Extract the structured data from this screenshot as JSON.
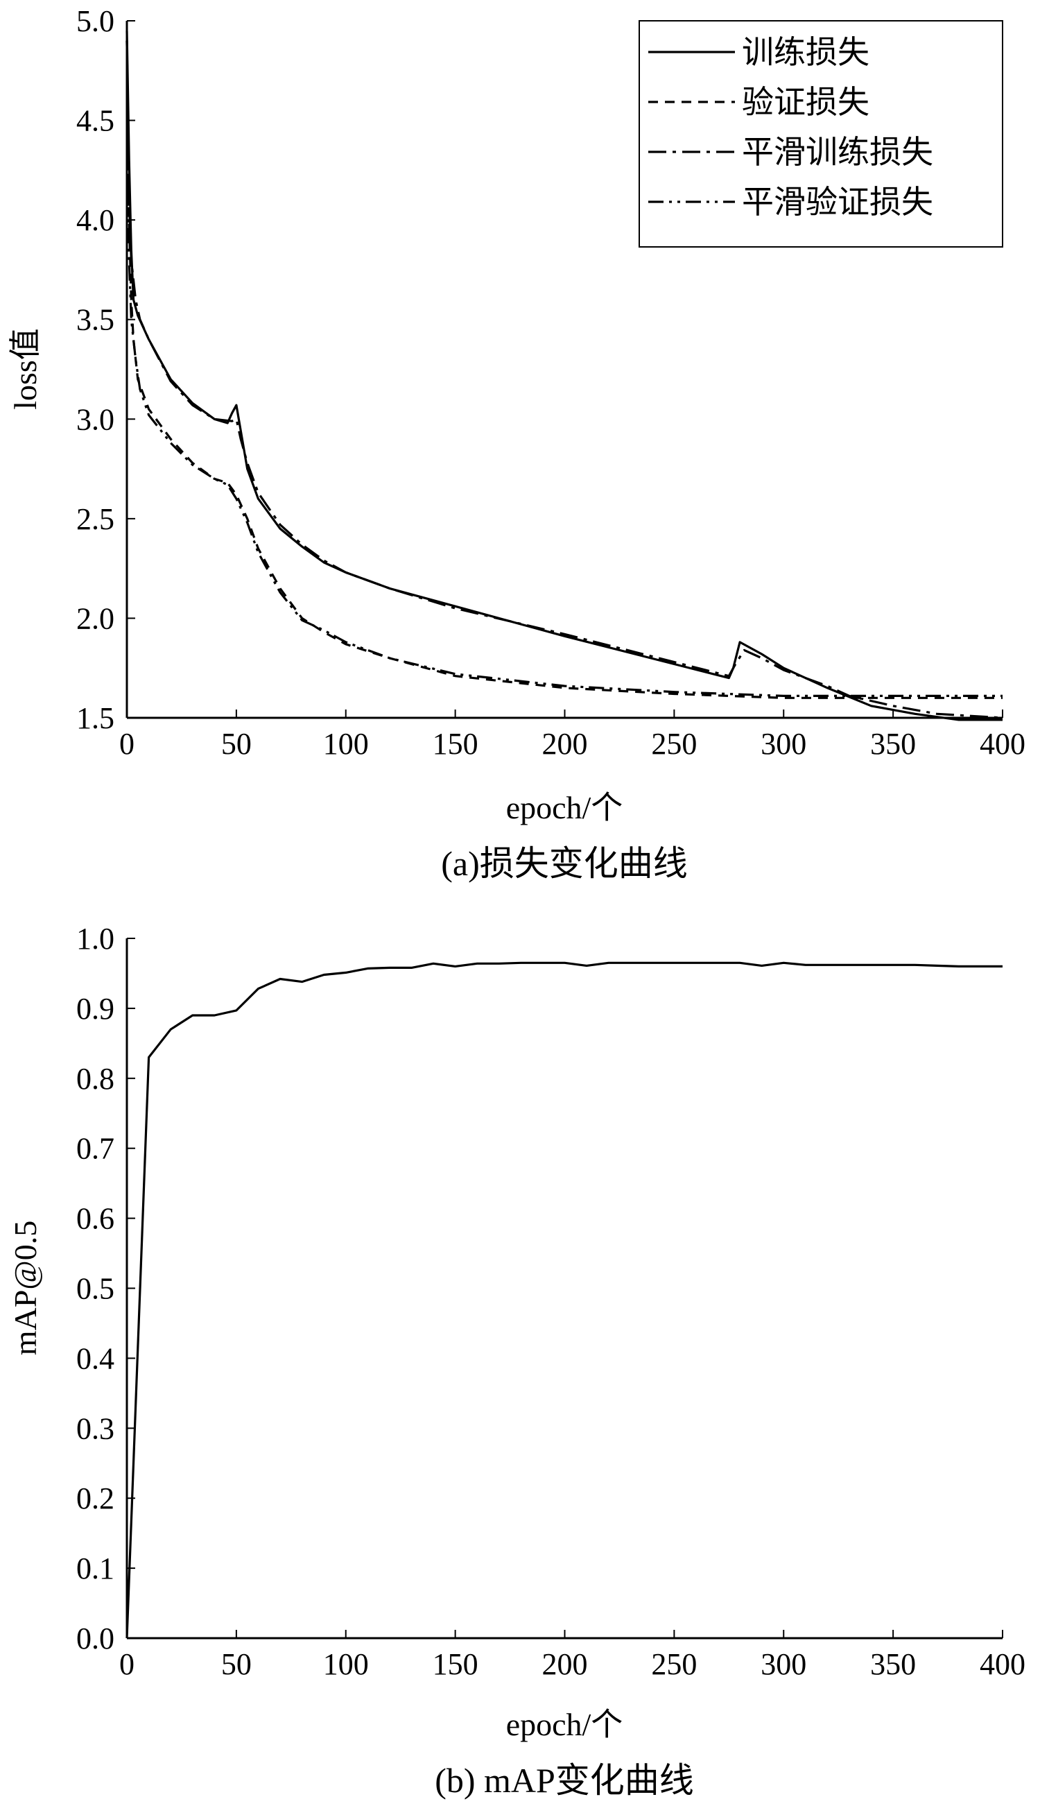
{
  "chart_data": [
    {
      "type": "line",
      "caption": "(a)损失变化曲线",
      "xlabel": "epoch/个",
      "ylabel": "loss值",
      "xlim": [
        0,
        400
      ],
      "ylim": [
        1.5,
        5.0
      ],
      "xticks": [
        "0",
        "50",
        "100",
        "150",
        "200",
        "250",
        "300",
        "350",
        "400"
      ],
      "yticks": [
        "1.5",
        "2.0",
        "2.5",
        "3.0",
        "3.5",
        "4.0",
        "4.5",
        "5.0"
      ],
      "grid": false,
      "legend_position": "top-right",
      "series": [
        {
          "name": "训练损失",
          "style": "solid",
          "x": [
            0,
            1,
            2,
            3,
            5,
            10,
            20,
            30,
            40,
            46,
            48,
            50,
            55,
            60,
            70,
            80,
            90,
            100,
            120,
            150,
            200,
            250,
            275,
            277,
            280,
            290,
            300,
            320,
            340,
            360,
            380,
            400
          ],
          "y": [
            4.95,
            4.3,
            3.85,
            3.6,
            3.52,
            3.4,
            3.2,
            3.08,
            3.0,
            2.98,
            3.03,
            3.07,
            2.75,
            2.6,
            2.45,
            2.36,
            2.28,
            2.23,
            2.15,
            2.06,
            1.91,
            1.77,
            1.7,
            1.75,
            1.88,
            1.82,
            1.75,
            1.65,
            1.56,
            1.52,
            1.49,
            1.49
          ]
        },
        {
          "name": "验证损失",
          "style": "dashed",
          "x": [
            0,
            1,
            2,
            3,
            5,
            10,
            20,
            30,
            40,
            46,
            50,
            55,
            60,
            70,
            80,
            90,
            100,
            120,
            150,
            200,
            250,
            300,
            350,
            400
          ],
          "y": [
            4.9,
            4.0,
            3.6,
            3.4,
            3.2,
            3.05,
            2.9,
            2.78,
            2.7,
            2.68,
            2.62,
            2.5,
            2.35,
            2.15,
            2.0,
            1.93,
            1.87,
            1.8,
            1.71,
            1.65,
            1.62,
            1.6,
            1.6,
            1.6
          ]
        },
        {
          "name": "平滑训练损失",
          "style": "dashdot",
          "x": [
            0,
            1,
            2,
            4,
            6,
            10,
            20,
            30,
            40,
            48,
            50,
            52,
            55,
            60,
            70,
            80,
            90,
            100,
            120,
            150,
            200,
            250,
            275,
            278,
            282,
            290,
            300,
            320,
            330,
            350,
            370,
            400
          ],
          "y": [
            4.9,
            4.1,
            3.8,
            3.6,
            3.5,
            3.4,
            3.19,
            3.07,
            3.0,
            2.99,
            3.0,
            2.9,
            2.78,
            2.63,
            2.47,
            2.37,
            2.29,
            2.23,
            2.15,
            2.05,
            1.92,
            1.78,
            1.71,
            1.77,
            1.84,
            1.8,
            1.74,
            1.66,
            1.61,
            1.56,
            1.52,
            1.5
          ]
        },
        {
          "name": "平滑验证损失",
          "style": "dashdotdot",
          "x": [
            0,
            1,
            2,
            4,
            6,
            10,
            20,
            30,
            40,
            46,
            50,
            55,
            60,
            70,
            80,
            90,
            100,
            120,
            150,
            200,
            250,
            300,
            350,
            400
          ],
          "y": [
            4.9,
            3.8,
            3.5,
            3.3,
            3.15,
            3.02,
            2.88,
            2.77,
            2.7,
            2.67,
            2.6,
            2.48,
            2.33,
            2.13,
            1.99,
            1.94,
            1.88,
            1.8,
            1.72,
            1.66,
            1.63,
            1.61,
            1.61,
            1.61
          ]
        }
      ]
    },
    {
      "type": "line",
      "caption": "(b) mAP变化曲线",
      "xlabel": "epoch/个",
      "ylabel": "mAP@0.5",
      "xlim": [
        0,
        400
      ],
      "ylim": [
        0.0,
        1.0
      ],
      "xticks": [
        "0",
        "50",
        "100",
        "150",
        "200",
        "250",
        "300",
        "350",
        "400"
      ],
      "yticks": [
        "0.0",
        "0.1",
        "0.2",
        "0.3",
        "0.4",
        "0.5",
        "0.6",
        "0.7",
        "0.8",
        "0.9",
        "1.0"
      ],
      "grid": false,
      "series": [
        {
          "style": "solid",
          "x": [
            0,
            10,
            20,
            30,
            40,
            50,
            60,
            70,
            80,
            90,
            100,
            110,
            120,
            130,
            140,
            150,
            160,
            170,
            180,
            190,
            200,
            210,
            220,
            230,
            240,
            250,
            260,
            270,
            280,
            290,
            300,
            310,
            320,
            330,
            340,
            350,
            360,
            370,
            380,
            390,
            400
          ],
          "y": [
            0.0,
            0.83,
            0.87,
            0.89,
            0.89,
            0.897,
            0.928,
            0.942,
            0.938,
            0.948,
            0.951,
            0.957,
            0.958,
            0.958,
            0.964,
            0.96,
            0.964,
            0.964,
            0.965,
            0.965,
            0.965,
            0.961,
            0.965,
            0.965,
            0.965,
            0.965,
            0.965,
            0.965,
            0.965,
            0.961,
            0.965,
            0.962,
            0.962,
            0.962,
            0.962,
            0.962,
            0.962,
            0.961,
            0.96,
            0.96,
            0.96
          ]
        }
      ]
    }
  ],
  "legend_line_styles": {
    "solid": "",
    "dashed": "14,10",
    "dashdot": "26,9,5,9",
    "dashdotdot": "22,8,4,8,4,8"
  }
}
